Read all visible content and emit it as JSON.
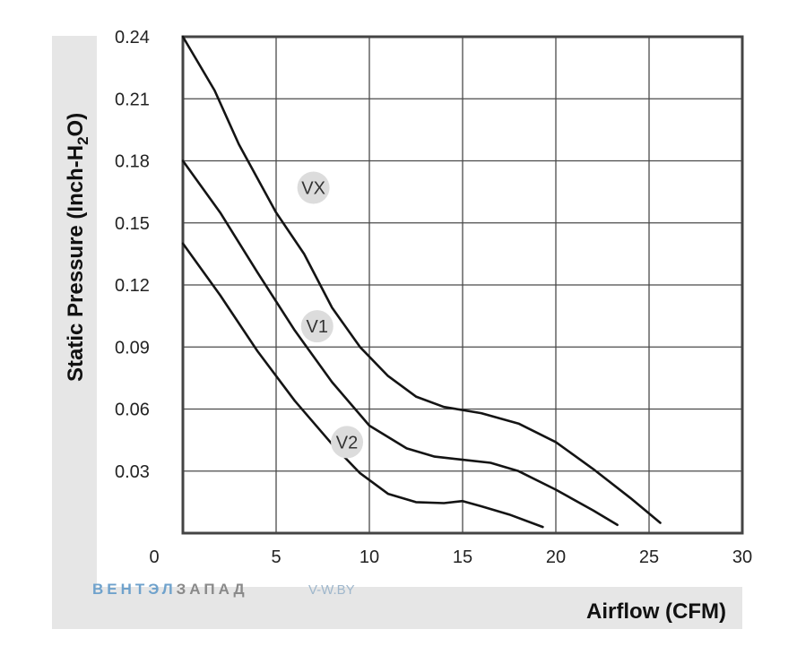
{
  "chart_data": {
    "type": "line",
    "xlabel": "Airflow (CFM)",
    "ylabel_main": "Static Pressure (Inch-H",
    "ylabel_sub": "2",
    "ylabel_end": "O)",
    "xlim": [
      0,
      30
    ],
    "ylim": [
      0,
      0.24
    ],
    "x_ticks": [
      {
        "value": 0,
        "label": "0"
      },
      {
        "value": 5,
        "label": "5"
      },
      {
        "value": 10,
        "label": "10"
      },
      {
        "value": 15,
        "label": "15"
      },
      {
        "value": 20,
        "label": "20"
      },
      {
        "value": 25,
        "label": "25"
      },
      {
        "value": 30,
        "label": "30"
      }
    ],
    "y_ticks": [
      {
        "value": 0.03,
        "label": "0.03"
      },
      {
        "value": 0.06,
        "label": "0.06"
      },
      {
        "value": 0.09,
        "label": "0.09"
      },
      {
        "value": 0.12,
        "label": "0.12"
      },
      {
        "value": 0.15,
        "label": "0.15"
      },
      {
        "value": 0.18,
        "label": "0.18"
      },
      {
        "value": 0.21,
        "label": "0.21"
      },
      {
        "value": 0.24,
        "label": "0.24"
      }
    ],
    "grid": true,
    "series": [
      {
        "name": "VX",
        "label_at": [
          7.0,
          0.167
        ],
        "points": [
          [
            0,
            0.24
          ],
          [
            1.7,
            0.214
          ],
          [
            3,
            0.188
          ],
          [
            5,
            0.155
          ],
          [
            6.5,
            0.135
          ],
          [
            8,
            0.109
          ],
          [
            9.5,
            0.09
          ],
          [
            11,
            0.076
          ],
          [
            12.5,
            0.066
          ],
          [
            14,
            0.061
          ],
          [
            16,
            0.058
          ],
          [
            18,
            0.053
          ],
          [
            20,
            0.044
          ],
          [
            22,
            0.031
          ],
          [
            24,
            0.017
          ],
          [
            25.6,
            0.005
          ]
        ]
      },
      {
        "name": "V1",
        "label_at": [
          7.2,
          0.1
        ],
        "points": [
          [
            0,
            0.18
          ],
          [
            2,
            0.155
          ],
          [
            4,
            0.126
          ],
          [
            6,
            0.098
          ],
          [
            8,
            0.073
          ],
          [
            10,
            0.052
          ],
          [
            12,
            0.041
          ],
          [
            13.5,
            0.037
          ],
          [
            15,
            0.0355
          ],
          [
            16.5,
            0.034
          ],
          [
            18,
            0.03
          ],
          [
            20,
            0.021
          ],
          [
            22,
            0.011
          ],
          [
            23.3,
            0.004
          ]
        ]
      },
      {
        "name": "V2",
        "label_at": [
          8.8,
          0.044
        ],
        "points": [
          [
            0,
            0.14
          ],
          [
            2,
            0.115
          ],
          [
            4,
            0.088
          ],
          [
            6,
            0.064
          ],
          [
            8,
            0.043
          ],
          [
            9.5,
            0.029
          ],
          [
            11,
            0.019
          ],
          [
            12.5,
            0.015
          ],
          [
            14,
            0.0145
          ],
          [
            15,
            0.0155
          ],
          [
            16,
            0.013
          ],
          [
            17.5,
            0.009
          ],
          [
            19.3,
            0.003
          ]
        ]
      }
    ]
  },
  "watermark": {
    "brand_part1": "ВЕНТЭЛ",
    "brand_part2": "ЗАПАД",
    "site": "V-W.BY",
    "color_part1": "#6fa2cc",
    "color_part2": "#8a8a8a"
  }
}
